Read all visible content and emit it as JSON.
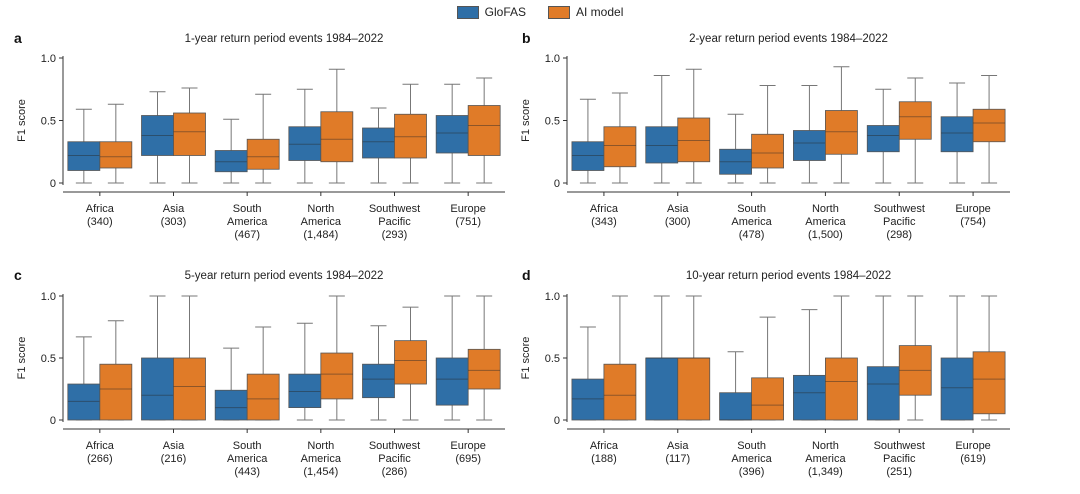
{
  "legend": {
    "items": [
      {
        "label": "GloFAS",
        "color": "#2f6fa7"
      },
      {
        "label": "AI model",
        "color": "#e07b28"
      }
    ]
  },
  "chart_data": [
    {
      "type": "box",
      "panel_label": "a",
      "title": "1-year return period events 1984–2022",
      "ylabel": "F1 score",
      "ylim": [
        0,
        1.0
      ],
      "yticks": [
        "0",
        "0.5",
        "1.0"
      ],
      "categories": [
        {
          "line1": "Africa",
          "line2": "(340)",
          "line3": ""
        },
        {
          "line1": "Asia",
          "line2": "(303)",
          "line3": ""
        },
        {
          "line1": "South",
          "line2": "America",
          "line3": "(467)"
        },
        {
          "line1": "North",
          "line2": "America",
          "line3": "(1,484)"
        },
        {
          "line1": "Southwest",
          "line2": "Pacific",
          "line3": "(293)"
        },
        {
          "line1": "Europe",
          "line2": "(751)",
          "line3": ""
        }
      ],
      "series": [
        {
          "name": "GloFAS",
          "boxes": [
            {
              "min": 0,
              "q1": 0.1,
              "median": 0.22,
              "q3": 0.33,
              "max": 0.59
            },
            {
              "min": 0,
              "q1": 0.22,
              "median": 0.38,
              "q3": 0.54,
              "max": 0.73
            },
            {
              "min": 0,
              "q1": 0.09,
              "median": 0.17,
              "q3": 0.26,
              "max": 0.51
            },
            {
              "min": 0,
              "q1": 0.18,
              "median": 0.31,
              "q3": 0.45,
              "max": 0.75
            },
            {
              "min": 0,
              "q1": 0.2,
              "median": 0.33,
              "q3": 0.44,
              "max": 0.6
            },
            {
              "min": 0,
              "q1": 0.24,
              "median": 0.4,
              "q3": 0.54,
              "max": 0.79
            }
          ]
        },
        {
          "name": "AI model",
          "boxes": [
            {
              "min": 0,
              "q1": 0.12,
              "median": 0.21,
              "q3": 0.33,
              "max": 0.63
            },
            {
              "min": 0,
              "q1": 0.22,
              "median": 0.41,
              "q3": 0.56,
              "max": 0.76
            },
            {
              "min": 0,
              "q1": 0.11,
              "median": 0.21,
              "q3": 0.35,
              "max": 0.71
            },
            {
              "min": 0,
              "q1": 0.17,
              "median": 0.35,
              "q3": 0.57,
              "max": 0.91
            },
            {
              "min": 0,
              "q1": 0.2,
              "median": 0.37,
              "q3": 0.55,
              "max": 0.79
            },
            {
              "min": 0,
              "q1": 0.22,
              "median": 0.46,
              "q3": 0.62,
              "max": 0.84
            }
          ]
        }
      ]
    },
    {
      "type": "box",
      "panel_label": "b",
      "title": "2-year return period events 1984–2022",
      "ylabel": "F1 score",
      "ylim": [
        0,
        1.0
      ],
      "yticks": [
        "0",
        "0.5",
        "1.0"
      ],
      "categories": [
        {
          "line1": "Africa",
          "line2": "(343)",
          "line3": ""
        },
        {
          "line1": "Asia",
          "line2": "(300)",
          "line3": ""
        },
        {
          "line1": "South",
          "line2": "America",
          "line3": "(478)"
        },
        {
          "line1": "North",
          "line2": "America",
          "line3": "(1,500)"
        },
        {
          "line1": "Southwest",
          "line2": "Pacific",
          "line3": "(298)"
        },
        {
          "line1": "Europe",
          "line2": "(754)",
          "line3": ""
        }
      ],
      "series": [
        {
          "name": "GloFAS",
          "boxes": [
            {
              "min": 0,
              "q1": 0.1,
              "median": 0.22,
              "q3": 0.33,
              "max": 0.67
            },
            {
              "min": 0,
              "q1": 0.16,
              "median": 0.3,
              "q3": 0.45,
              "max": 0.86
            },
            {
              "min": 0,
              "q1": 0.07,
              "median": 0.17,
              "q3": 0.27,
              "max": 0.55
            },
            {
              "min": 0,
              "q1": 0.18,
              "median": 0.32,
              "q3": 0.42,
              "max": 0.78
            },
            {
              "min": 0,
              "q1": 0.25,
              "median": 0.38,
              "q3": 0.46,
              "max": 0.75
            },
            {
              "min": 0,
              "q1": 0.25,
              "median": 0.4,
              "q3": 0.53,
              "max": 0.8
            }
          ]
        },
        {
          "name": "AI model",
          "boxes": [
            {
              "min": 0,
              "q1": 0.13,
              "median": 0.3,
              "q3": 0.45,
              "max": 0.72
            },
            {
              "min": 0,
              "q1": 0.17,
              "median": 0.34,
              "q3": 0.52,
              "max": 0.91
            },
            {
              "min": 0,
              "q1": 0.12,
              "median": 0.24,
              "q3": 0.39,
              "max": 0.78
            },
            {
              "min": 0,
              "q1": 0.23,
              "median": 0.41,
              "q3": 0.58,
              "max": 0.93
            },
            {
              "min": 0,
              "q1": 0.35,
              "median": 0.53,
              "q3": 0.65,
              "max": 0.84
            },
            {
              "min": 0,
              "q1": 0.33,
              "median": 0.48,
              "q3": 0.59,
              "max": 0.86
            }
          ]
        }
      ]
    },
    {
      "type": "box",
      "panel_label": "c",
      "title": "5-year return period events 1984–2022",
      "ylabel": "F1 score",
      "ylim": [
        0,
        1.0
      ],
      "yticks": [
        "0",
        "0.5",
        "1.0"
      ],
      "categories": [
        {
          "line1": "Africa",
          "line2": "(266)",
          "line3": ""
        },
        {
          "line1": "Asia",
          "line2": "(216)",
          "line3": ""
        },
        {
          "line1": "South",
          "line2": "America",
          "line3": "(443)"
        },
        {
          "line1": "North",
          "line2": "America",
          "line3": "(1,454)"
        },
        {
          "line1": "Southwest",
          "line2": "Pacific",
          "line3": "(286)"
        },
        {
          "line1": "Europe",
          "line2": "(695)",
          "line3": ""
        }
      ],
      "series": [
        {
          "name": "GloFAS",
          "boxes": [
            {
              "min": 0,
              "q1": 0.0,
              "median": 0.15,
              "q3": 0.29,
              "max": 0.67
            },
            {
              "min": 0,
              "q1": 0.0,
              "median": 0.2,
              "q3": 0.5,
              "max": 1.0
            },
            {
              "min": 0,
              "q1": 0.0,
              "median": 0.1,
              "q3": 0.24,
              "max": 0.58
            },
            {
              "min": 0,
              "q1": 0.1,
              "median": 0.23,
              "q3": 0.37,
              "max": 0.78
            },
            {
              "min": 0,
              "q1": 0.18,
              "median": 0.33,
              "q3": 0.45,
              "max": 0.76
            },
            {
              "min": 0,
              "q1": 0.12,
              "median": 0.33,
              "q3": 0.5,
              "max": 1.0
            }
          ]
        },
        {
          "name": "AI model",
          "boxes": [
            {
              "min": 0,
              "q1": 0.0,
              "median": 0.25,
              "q3": 0.45,
              "max": 0.8
            },
            {
              "min": 0,
              "q1": 0.0,
              "median": 0.27,
              "q3": 0.5,
              "max": 1.0
            },
            {
              "min": 0,
              "q1": 0.0,
              "median": 0.17,
              "q3": 0.37,
              "max": 0.75
            },
            {
              "min": 0,
              "q1": 0.17,
              "median": 0.37,
              "q3": 0.54,
              "max": 1.0
            },
            {
              "min": 0,
              "q1": 0.29,
              "median": 0.48,
              "q3": 0.64,
              "max": 0.91
            },
            {
              "min": 0,
              "q1": 0.25,
              "median": 0.4,
              "q3": 0.57,
              "max": 1.0
            }
          ]
        }
      ]
    },
    {
      "type": "box",
      "panel_label": "d",
      "title": "10-year return period events 1984–2022",
      "ylabel": "F1 score",
      "ylim": [
        0,
        1.0
      ],
      "yticks": [
        "0",
        "0.5",
        "1.0"
      ],
      "categories": [
        {
          "line1": "Africa",
          "line2": "(188)",
          "line3": ""
        },
        {
          "line1": "Asia",
          "line2": "(117)",
          "line3": ""
        },
        {
          "line1": "South",
          "line2": "America",
          "line3": "(396)"
        },
        {
          "line1": "North",
          "line2": "America",
          "line3": "(1,349)"
        },
        {
          "line1": "Southwest",
          "line2": "Pacific",
          "line3": "(251)"
        },
        {
          "line1": "Europe",
          "line2": "(619)",
          "line3": ""
        }
      ],
      "series": [
        {
          "name": "GloFAS",
          "boxes": [
            {
              "min": 0,
              "q1": 0.0,
              "median": 0.17,
              "q3": 0.33,
              "max": 0.75
            },
            {
              "min": 0,
              "q1": 0.0,
              "median": 0.5,
              "q3": 0.5,
              "max": 1.0
            },
            {
              "min": 0,
              "q1": 0.0,
              "median": 0.0,
              "q3": 0.22,
              "max": 0.55
            },
            {
              "min": 0,
              "q1": 0.0,
              "median": 0.22,
              "q3": 0.36,
              "max": 0.89
            },
            {
              "min": 0,
              "q1": 0.0,
              "median": 0.29,
              "q3": 0.43,
              "max": 1.0
            },
            {
              "min": 0,
              "q1": 0.0,
              "median": 0.26,
              "q3": 0.5,
              "max": 1.0
            }
          ]
        },
        {
          "name": "AI model",
          "boxes": [
            {
              "min": 0,
              "q1": 0.0,
              "median": 0.2,
              "q3": 0.45,
              "max": 1.0
            },
            {
              "min": 0,
              "q1": 0.0,
              "median": 0.5,
              "q3": 0.5,
              "max": 1.0
            },
            {
              "min": 0,
              "q1": 0.0,
              "median": 0.12,
              "q3": 0.34,
              "max": 0.83
            },
            {
              "min": 0,
              "q1": 0.0,
              "median": 0.31,
              "q3": 0.5,
              "max": 1.0
            },
            {
              "min": 0,
              "q1": 0.2,
              "median": 0.4,
              "q3": 0.6,
              "max": 1.0
            },
            {
              "min": 0,
              "q1": 0.05,
              "median": 0.33,
              "q3": 0.55,
              "max": 1.0
            }
          ]
        }
      ]
    }
  ]
}
